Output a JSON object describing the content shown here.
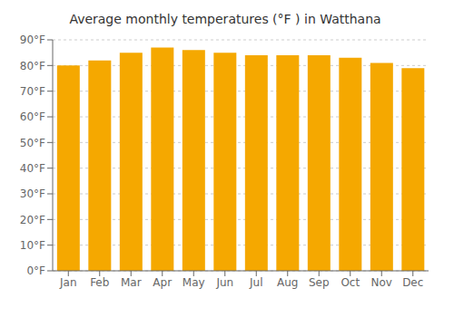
{
  "chart_data": {
    "type": "bar",
    "title": "Average monthly temperatures (°F ) in Watthana",
    "categories": [
      "Jan",
      "Feb",
      "Mar",
      "Apr",
      "May",
      "Jun",
      "Jul",
      "Aug",
      "Sep",
      "Oct",
      "Nov",
      "Dec"
    ],
    "values": [
      80,
      82,
      85,
      87,
      86,
      85,
      84,
      84,
      84,
      83,
      81,
      79
    ],
    "color": "#F5A800",
    "ylim": [
      0,
      90
    ],
    "yticks": [
      {
        "value": 0,
        "label": "0°F"
      },
      {
        "value": 10,
        "label": "10°F"
      },
      {
        "value": 20,
        "label": "20°F"
      },
      {
        "value": 30,
        "label": "30°F"
      },
      {
        "value": 40,
        "label": "40°F"
      },
      {
        "value": 50,
        "label": "50°F"
      },
      {
        "value": 60,
        "label": "60°F"
      },
      {
        "value": 70,
        "label": "70°F"
      },
      {
        "value": 80,
        "label": "80°F"
      },
      {
        "value": 90,
        "label": "90°F"
      }
    ],
    "grid": true
  }
}
